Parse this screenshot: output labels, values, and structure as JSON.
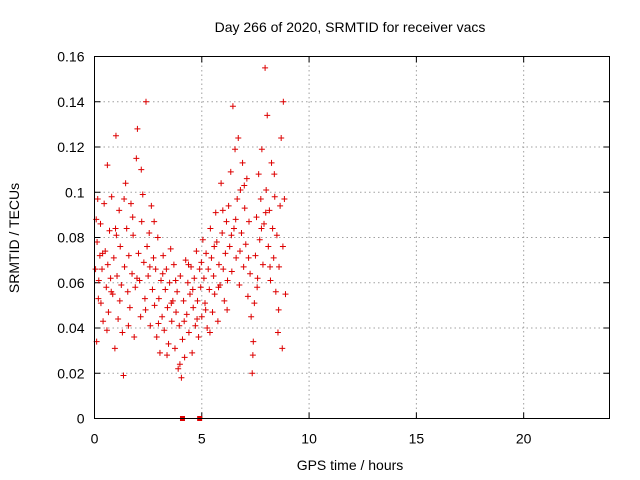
{
  "chart_data": {
    "type": "scatter",
    "title": "Day 266 of 2020, SRMTID for receiver vacs",
    "xlabel": "GPS time / hours",
    "ylabel": "SRMTID / TECUs",
    "xlim": [
      0,
      24
    ],
    "ylim": [
      0,
      0.16
    ],
    "x_ticks": [
      0,
      5,
      10,
      15,
      20
    ],
    "x_tick_labels": [
      "0",
      "5",
      "10",
      "15",
      "20"
    ],
    "y_ticks": [
      0,
      0.02,
      0.04,
      0.06,
      0.08,
      0.1,
      0.12,
      0.14,
      0.16
    ],
    "y_tick_labels": [
      "0",
      "0.02",
      "0.04",
      "0.06",
      "0.08",
      "0.1",
      "0.12",
      "0.14",
      "0.16"
    ],
    "grid": true,
    "marker": "+",
    "color": "#dd0000",
    "series": [
      {
        "name": "SRMTID",
        "points": [
          [
            0.05,
            0.066
          ],
          [
            0.1,
            0.034
          ],
          [
            0.12,
            0.078
          ],
          [
            0.15,
            0.097
          ],
          [
            0.2,
            0.061
          ],
          [
            0.25,
            0.072
          ],
          [
            0.28,
            0.086
          ],
          [
            0.3,
            0.051
          ],
          [
            0.35,
            0.066
          ],
          [
            0.4,
            0.043
          ],
          [
            0.45,
            0.095
          ],
          [
            0.5,
            0.074
          ],
          [
            0.55,
            0.058
          ],
          [
            0.6,
            0.112
          ],
          [
            0.62,
            0.068
          ],
          [
            0.65,
            0.047
          ],
          [
            0.7,
            0.083
          ],
          [
            0.75,
            0.062
          ],
          [
            0.8,
            0.098
          ],
          [
            0.85,
            0.055
          ],
          [
            0.9,
            0.071
          ],
          [
            0.95,
            0.031
          ],
          [
            1.0,
            0.125
          ],
          [
            1.02,
            0.081
          ],
          [
            1.05,
            0.063
          ],
          [
            1.1,
            0.044
          ],
          [
            1.15,
            0.092
          ],
          [
            1.2,
            0.076
          ],
          [
            1.25,
            0.059
          ],
          [
            1.3,
            0.038
          ],
          [
            1.35,
            0.019
          ],
          [
            1.4,
            0.067
          ],
          [
            1.45,
            0.104
          ],
          [
            1.5,
            0.084
          ],
          [
            1.55,
            0.056
          ],
          [
            1.6,
            0.072
          ],
          [
            1.65,
            0.049
          ],
          [
            1.7,
            0.095
          ],
          [
            1.75,
            0.064
          ],
          [
            1.8,
            0.081
          ],
          [
            1.85,
            0.036
          ],
          [
            1.9,
            0.058
          ],
          [
            1.95,
            0.115
          ],
          [
            2.0,
            0.128
          ],
          [
            2.05,
            0.073
          ],
          [
            2.1,
            0.061
          ],
          [
            2.15,
            0.045
          ],
          [
            2.2,
            0.087
          ],
          [
            2.25,
            0.099
          ],
          [
            2.3,
            0.069
          ],
          [
            2.35,
            0.053
          ],
          [
            2.4,
            0.14
          ],
          [
            2.45,
            0.076
          ],
          [
            2.5,
            0.063
          ],
          [
            2.55,
            0.082
          ],
          [
            2.6,
            0.041
          ],
          [
            2.65,
            0.094
          ],
          [
            2.7,
            0.057
          ],
          [
            2.75,
            0.071
          ],
          [
            2.8,
            0.05
          ],
          [
            2.85,
            0.066
          ],
          [
            2.9,
            0.036
          ],
          [
            2.95,
            0.08
          ],
          [
            3.0,
            0.053
          ],
          [
            3.05,
            0.029
          ],
          [
            3.1,
            0.061
          ],
          [
            3.15,
            0.045
          ],
          [
            3.2,
            0.072
          ],
          [
            3.25,
            0.039
          ],
          [
            3.3,
            0.057
          ],
          [
            3.35,
            0.066
          ],
          [
            3.4,
            0.049
          ],
          [
            3.45,
            0.033
          ],
          [
            3.5,
            0.06
          ],
          [
            3.55,
            0.075
          ],
          [
            3.6,
            0.043
          ],
          [
            3.65,
            0.052
          ],
          [
            3.7,
            0.068
          ],
          [
            3.75,
            0.031
          ],
          [
            3.8,
            0.047
          ],
          [
            3.85,
            0.056
          ],
          [
            3.9,
            0.022
          ],
          [
            3.95,
            0.041
          ],
          [
            4.0,
            0.063
          ],
          [
            4.05,
            0.018
          ],
          [
            4.1,
            0.035
          ],
          [
            4.15,
            0.052
          ],
          [
            4.2,
            0.027
          ],
          [
            4.25,
            0.07
          ],
          [
            4.3,
            0.046
          ],
          [
            4.35,
            0.06
          ],
          [
            4.4,
            0.038
          ],
          [
            4.45,
            0.055
          ],
          [
            4.5,
            0.067
          ],
          [
            4.55,
            0.029
          ],
          [
            4.6,
            0.049
          ],
          [
            4.65,
            0.062
          ],
          [
            4.7,
            0.041
          ],
          [
            4.75,
            0.074
          ],
          [
            4.8,
            0.052
          ],
          [
            4.85,
            0.036
          ],
          [
            4.9,
            0.066
          ],
          [
            4.95,
            0.058
          ],
          [
            5.0,
            0.045
          ],
          [
            5.05,
            0.079
          ],
          [
            5.1,
            0.062
          ],
          [
            5.15,
            0.051
          ],
          [
            5.2,
            0.073
          ],
          [
            5.25,
            0.04
          ],
          [
            5.3,
            0.066
          ],
          [
            5.35,
            0.057
          ],
          [
            5.4,
            0.084
          ],
          [
            5.45,
            0.071
          ],
          [
            5.5,
            0.047
          ],
          [
            5.55,
            0.063
          ],
          [
            5.6,
            0.055
          ],
          [
            5.65,
            0.091
          ],
          [
            5.7,
            0.078
          ],
          [
            5.75,
            0.043
          ],
          [
            5.8,
            0.068
          ],
          [
            5.85,
            0.059
          ],
          [
            5.9,
            0.104
          ],
          [
            5.95,
            0.082
          ],
          [
            6.0,
            0.066
          ],
          [
            6.05,
            0.052
          ],
          [
            6.1,
            0.073
          ],
          [
            6.15,
            0.087
          ],
          [
            6.2,
            0.061
          ],
          [
            6.25,
            0.094
          ],
          [
            6.3,
            0.076
          ],
          [
            6.35,
            0.109
          ],
          [
            6.4,
            0.065
          ],
          [
            6.45,
            0.138
          ],
          [
            6.5,
            0.084
          ],
          [
            6.55,
            0.119
          ],
          [
            6.6,
            0.071
          ],
          [
            6.65,
            0.097
          ],
          [
            6.7,
            0.124
          ],
          [
            6.75,
            0.059
          ],
          [
            6.8,
            0.101
          ],
          [
            6.85,
            0.082
          ],
          [
            6.9,
            0.113
          ],
          [
            6.95,
            0.067
          ],
          [
            7.0,
            0.093
          ],
          [
            7.05,
            0.077
          ],
          [
            7.1,
            0.106
          ],
          [
            7.15,
            0.054
          ],
          [
            7.2,
            0.087
          ],
          [
            7.25,
            0.064
          ],
          [
            7.3,
            0.045
          ],
          [
            7.35,
            0.02
          ],
          [
            7.4,
            0.034
          ],
          [
            7.45,
            0.051
          ],
          [
            7.5,
            0.072
          ],
          [
            7.55,
            0.089
          ],
          [
            7.6,
            0.062
          ],
          [
            7.65,
            0.108
          ],
          [
            7.7,
            0.079
          ],
          [
            7.75,
            0.097
          ],
          [
            7.8,
            0.119
          ],
          [
            7.85,
            0.068
          ],
          [
            7.9,
            0.086
          ],
          [
            7.95,
            0.155
          ],
          [
            8.0,
            0.101
          ],
          [
            8.05,
            0.134
          ],
          [
            8.1,
            0.076
          ],
          [
            8.15,
            0.092
          ],
          [
            8.2,
            0.061
          ],
          [
            8.25,
            0.113
          ],
          [
            8.3,
            0.084
          ],
          [
            8.35,
            0.071
          ],
          [
            8.4,
            0.098
          ],
          [
            8.45,
            0.056
          ],
          [
            8.5,
            0.081
          ],
          [
            8.55,
            0.038
          ],
          [
            8.6,
            0.067
          ],
          [
            8.65,
            0.094
          ],
          [
            8.7,
            0.124
          ],
          [
            8.75,
            0.031
          ],
          [
            8.8,
            0.14
          ],
          [
            8.85,
            0.097
          ],
          [
            8.9,
            0.055
          ],
          [
            0.08,
            0.088
          ],
          [
            0.18,
            0.053
          ],
          [
            0.38,
            0.073
          ],
          [
            0.58,
            0.039
          ],
          [
            0.78,
            0.056
          ],
          [
            0.98,
            0.084
          ],
          [
            1.18,
            0.052
          ],
          [
            1.38,
            0.097
          ],
          [
            1.58,
            0.041
          ],
          [
            1.78,
            0.089
          ],
          [
            1.98,
            0.062
          ],
          [
            2.18,
            0.11
          ],
          [
            2.38,
            0.048
          ],
          [
            2.58,
            0.067
          ],
          [
            2.78,
            0.087
          ],
          [
            2.98,
            0.042
          ],
          [
            3.18,
            0.064
          ],
          [
            3.38,
            0.028
          ],
          [
            3.58,
            0.051
          ],
          [
            3.78,
            0.061
          ],
          [
            3.98,
            0.024
          ],
          [
            4.18,
            0.043
          ],
          [
            4.38,
            0.068
          ],
          [
            4.58,
            0.057
          ],
          [
            4.78,
            0.044
          ],
          [
            4.98,
            0.069
          ],
          [
            5.18,
            0.048
          ],
          [
            5.38,
            0.038
          ],
          [
            5.58,
            0.076
          ],
          [
            5.78,
            0.058
          ],
          [
            5.98,
            0.092
          ],
          [
            6.18,
            0.048
          ],
          [
            6.38,
            0.081
          ],
          [
            6.58,
            0.088
          ],
          [
            6.78,
            0.074
          ],
          [
            6.98,
            0.103
          ],
          [
            7.18,
            0.071
          ],
          [
            7.38,
            0.028
          ],
          [
            7.58,
            0.058
          ],
          [
            7.78,
            0.084
          ],
          [
            7.98,
            0.091
          ],
          [
            8.18,
            0.067
          ],
          [
            8.38,
            0.108
          ],
          [
            8.58,
            0.048
          ],
          [
            8.78,
            0.076
          ]
        ]
      }
    ],
    "zero_markers_x": [
      4.1,
      4.9
    ]
  }
}
